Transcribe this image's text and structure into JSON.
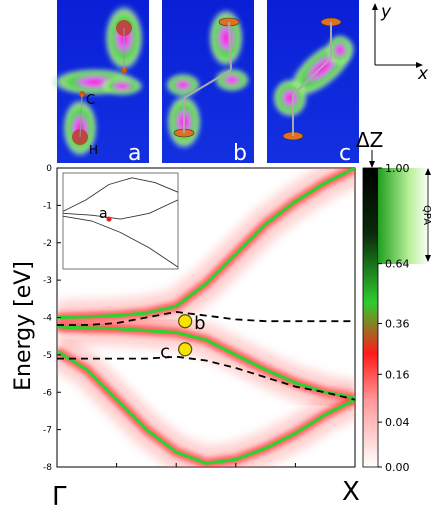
{
  "chart_data": {
    "type": "heatmap",
    "ylabel": "Energy [eV]",
    "xlabel_left": "Γ",
    "xlabel_right": "X",
    "ylim": [
      -8,
      0
    ],
    "yticks": [
      "0",
      "-1",
      "-2",
      "-3",
      "-4",
      "-5",
      "-6",
      "-7",
      "-8"
    ],
    "colorbar": {
      "title": "ΔZ",
      "ticks": [
        "1.00",
        "0.64",
        "0.36",
        "0.16",
        "0.04",
        "0.00"
      ],
      "qpa_label": "QPA",
      "colors": [
        "#ffffff",
        "#ff9a9a",
        "#ff1a1a",
        "#2ecc2e",
        "#0a2a0a",
        "#000000"
      ]
    },
    "bands": [
      {
        "x": [
          0,
          0.1,
          0.2,
          0.3,
          0.4,
          0.5,
          0.6,
          0.7,
          0.8,
          0.9,
          1.0
        ],
        "y": [
          -4.0,
          -3.98,
          -3.95,
          -3.88,
          -3.7,
          -3.1,
          -2.3,
          -1.5,
          -0.9,
          -0.4,
          0.0
        ]
      },
      {
        "x": [
          0,
          0.1,
          0.2,
          0.3,
          0.4,
          0.5,
          0.6,
          0.7,
          0.8,
          0.9,
          1.0
        ],
        "y": [
          -4.25,
          -4.28,
          -4.3,
          -4.35,
          -4.4,
          -4.6,
          -5.0,
          -5.4,
          -5.75,
          -6.0,
          -6.15
        ]
      },
      {
        "x": [
          0,
          0.1,
          0.2,
          0.3,
          0.4,
          0.5,
          0.6,
          0.7,
          0.8,
          0.9,
          1.0
        ],
        "y": [
          -4.9,
          -5.4,
          -6.2,
          -7.0,
          -7.6,
          -7.9,
          -7.8,
          -7.5,
          -7.1,
          -6.6,
          -6.2
        ]
      }
    ],
    "dashed_bands": [
      {
        "x": [
          0,
          0.1,
          0.2,
          0.3,
          0.4,
          0.5,
          0.6,
          0.7,
          0.8,
          0.9,
          1.0
        ],
        "y": [
          -4.2,
          -4.2,
          -4.15,
          -4.0,
          -3.85,
          -3.95,
          -4.05,
          -4.1,
          -4.1,
          -4.1,
          -4.1
        ]
      },
      {
        "x": [
          0,
          0.1,
          0.2,
          0.3,
          0.4,
          0.5,
          0.6,
          0.7,
          0.8,
          0.9,
          1.0
        ],
        "y": [
          -5.1,
          -5.1,
          -5.1,
          -5.1,
          -5.05,
          -5.15,
          -5.35,
          -5.6,
          -5.85,
          -6.0,
          -6.2
        ]
      }
    ],
    "points": [
      {
        "label": "b",
        "x": 0.43,
        "y": -4.1
      },
      {
        "label": "c",
        "x": 0.43,
        "y": -4.85
      }
    ],
    "inset": {
      "point_label": "a",
      "bands": [
        {
          "x": [
            0,
            0.25,
            0.5,
            0.75,
            1.0
          ],
          "y": [
            0.55,
            0.5,
            0.38,
            0.22,
            0.02
          ]
        },
        {
          "x": [
            0,
            0.25,
            0.5,
            0.75,
            1.0
          ],
          "y": [
            0.58,
            0.56,
            0.52,
            0.58,
            0.72
          ]
        },
        {
          "x": [
            0,
            0.2,
            0.4,
            0.6,
            0.8,
            1.0
          ],
          "y": [
            0.6,
            0.72,
            0.88,
            0.95,
            0.9,
            0.8
          ]
        }
      ],
      "point": {
        "x": 0.4,
        "y": 0.52
      }
    }
  },
  "orbital_panels": [
    {
      "label": "a",
      "atom_c": "C",
      "atom_h": "H"
    },
    {
      "label": "b"
    },
    {
      "label": "c"
    }
  ],
  "axes_icon": {
    "y": "y",
    "x": "x"
  }
}
